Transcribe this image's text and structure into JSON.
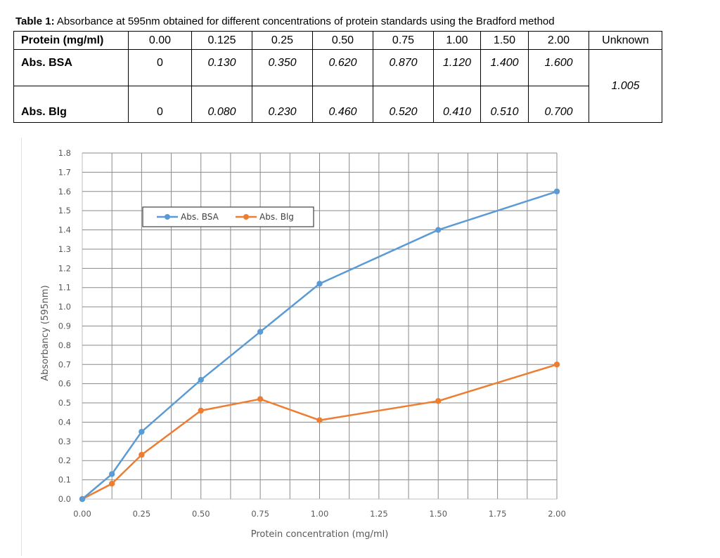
{
  "table": {
    "caption_bold": "Table 1:",
    "caption_text": " Absorbance at 595nm obtained for different concentrations of protein standards using the Bradford method",
    "header_label": "Protein (mg/ml)",
    "concentrations": [
      "0.00",
      "0.125",
      "0.25",
      "0.50",
      "0.75",
      "1.00",
      "1.50",
      "2.00"
    ],
    "unknown_label": "Unknown",
    "rows": [
      {
        "label": "Abs. BSA",
        "values": [
          "0",
          "0.130",
          "0.350",
          "0.620",
          "0.870",
          "1.120",
          "1.400",
          "1.600"
        ]
      },
      {
        "label": "Abs. Blg",
        "values": [
          "0",
          "0.080",
          "0.230",
          "0.460",
          "0.520",
          "0.410",
          "0.510",
          "0.700"
        ]
      }
    ],
    "unknown_value": "1.005"
  },
  "chart_data": {
    "type": "line",
    "title": "",
    "xlabel": "Protein concentration (mg/ml)",
    "ylabel": "Absorbancy (595nm)",
    "xlim": [
      0,
      2
    ],
    "ylim": [
      0,
      1.8
    ],
    "x_ticks": [
      "0.00",
      "0.25",
      "0.50",
      "0.75",
      "1.00",
      "1.25",
      "1.50",
      "1.75",
      "2.00"
    ],
    "y_ticks": [
      "0.0",
      "0.1",
      "0.2",
      "0.3",
      "0.4",
      "0.5",
      "0.6",
      "0.7",
      "0.8",
      "0.9",
      "1.0",
      "1.1",
      "1.2",
      "1.3",
      "1.4",
      "1.5",
      "1.6",
      "1.7",
      "1.8"
    ],
    "grid": true,
    "legend_position": "top-left",
    "x": [
      0,
      0.125,
      0.25,
      0.5,
      0.75,
      1.0,
      1.5,
      2.0
    ],
    "series": [
      {
        "name": "Abs. BSA",
        "color": "#5b9bd5",
        "values": [
          0,
          0.13,
          0.35,
          0.62,
          0.87,
          1.12,
          1.4,
          1.6
        ]
      },
      {
        "name": "Abs. Blg",
        "color": "#ed7d31",
        "values": [
          0,
          0.08,
          0.23,
          0.46,
          0.52,
          0.41,
          0.51,
          0.7
        ]
      }
    ]
  }
}
